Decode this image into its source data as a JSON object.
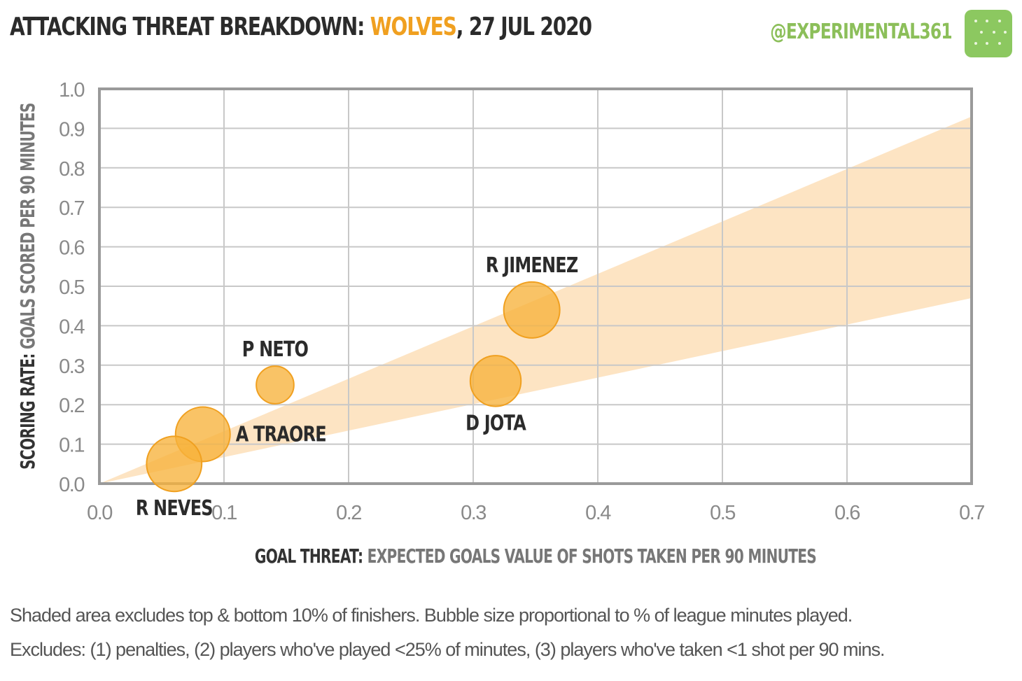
{
  "header": {
    "title_prefix": "ATTACKING THREAT BREAKDOWN:",
    "team": "WOLVES",
    "date": ", 27 JUL 2020",
    "handle": "@EXPERIMENTAL361"
  },
  "colors": {
    "bubble": "#f7b23b",
    "band": "#fde3c0",
    "grid": "#c8c8c8",
    "frame": "#9a9a9a",
    "team": "#f0a020",
    "handle": "#8cbf5a"
  },
  "chart_data": {
    "type": "scatter",
    "xlabel_bold": "GOAL THREAT:",
    "xlabel_rest": "EXPECTED GOALS VALUE OF SHOTS  TAKEN PER 90 MINUTES",
    "ylabel_bold": "SCORING RATE:",
    "ylabel_rest": "GOALS SCORED PER 90 MINUTES",
    "xlim": [
      0,
      0.7
    ],
    "ylim": [
      0,
      1.0
    ],
    "xticks": [
      "0.0",
      "0.1",
      "0.2",
      "0.3",
      "0.4",
      "0.5",
      "0.6",
      "0.7"
    ],
    "yticks": [
      "0.0",
      "0.1",
      "0.2",
      "0.3",
      "0.4",
      "0.5",
      "0.6",
      "0.7",
      "0.8",
      "0.9",
      "1.0"
    ],
    "grid": true,
    "band": {
      "upper_y_at_xmax": 0.93,
      "lower_y_at_xmax": 0.47
    },
    "points": [
      {
        "label": "R JIMENEZ",
        "x": 0.347,
        "y": 0.44,
        "size": 1.0,
        "label_pos": "above"
      },
      {
        "label": "D JOTA",
        "x": 0.318,
        "y": 0.26,
        "size": 0.82,
        "label_pos": "below"
      },
      {
        "label": "P NETO",
        "x": 0.141,
        "y": 0.25,
        "size": 0.45,
        "label_pos": "above"
      },
      {
        "label": "A TRAORE",
        "x": 0.083,
        "y": 0.125,
        "size": 0.95,
        "label_pos": "right"
      },
      {
        "label": "R NEVES",
        "x": 0.06,
        "y": 0.05,
        "size": 0.97,
        "label_pos": "below"
      }
    ]
  },
  "footnotes": {
    "line1": "Shaded area excludes top & bottom 10% of finishers. Bubble size proportional to % of league minutes played.",
    "line2": "Excludes: (1) penalties, (2) players who've played <25% of minutes, (3) players who've taken <1 shot per 90 mins."
  }
}
